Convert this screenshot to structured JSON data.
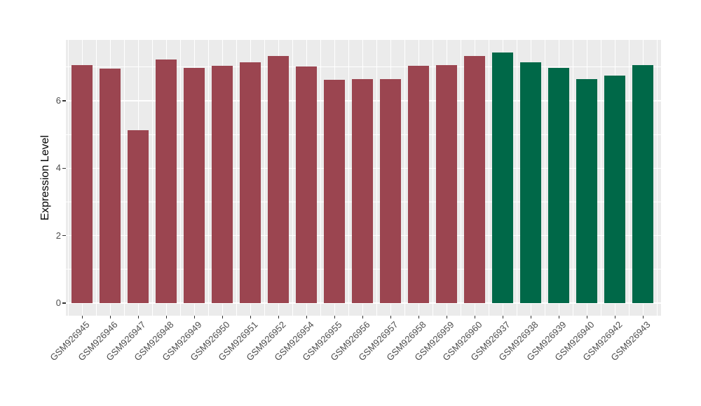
{
  "chart_data": {
    "type": "bar",
    "title": "",
    "xlabel": "",
    "ylabel": "Expression Level",
    "categories": [
      "GSM926945",
      "GSM926946",
      "GSM926947",
      "GSM926948",
      "GSM926949",
      "GSM926950",
      "GSM926951",
      "GSM926952",
      "GSM926954",
      "GSM926955",
      "GSM926956",
      "GSM926957",
      "GSM926958",
      "GSM926959",
      "GSM926960",
      "GSM926937",
      "GSM926938",
      "GSM926939",
      "GSM926940",
      "GSM926942",
      "GSM926943"
    ],
    "values": [
      7.05,
      6.95,
      5.12,
      7.22,
      6.98,
      7.03,
      7.15,
      7.32,
      7.02,
      6.62,
      6.65,
      6.65,
      7.03,
      7.05,
      7.33,
      7.43,
      7.15,
      6.97,
      6.65,
      6.74,
      7.05
    ],
    "bar_groups": [
      "maroon",
      "maroon",
      "maroon",
      "maroon",
      "maroon",
      "maroon",
      "maroon",
      "maroon",
      "maroon",
      "maroon",
      "maroon",
      "maroon",
      "maroon",
      "maroon",
      "maroon",
      "green",
      "green",
      "green",
      "green",
      "green",
      "green"
    ],
    "group_colors": {
      "maroon": "#9b4550",
      "green": "#006848"
    },
    "yticks": [
      0,
      2,
      4,
      6
    ],
    "yticks_minor": [
      1,
      3,
      5,
      7
    ],
    "ylim": [
      0,
      7.8
    ],
    "x_label_rotation_deg": 45,
    "legend_position": "none",
    "grid": "on",
    "panel_background": "#ebebeb",
    "gridline_color": "#ffffff",
    "tick_label_color": "#4d4d4d",
    "axis_title_color": "#000000"
  }
}
